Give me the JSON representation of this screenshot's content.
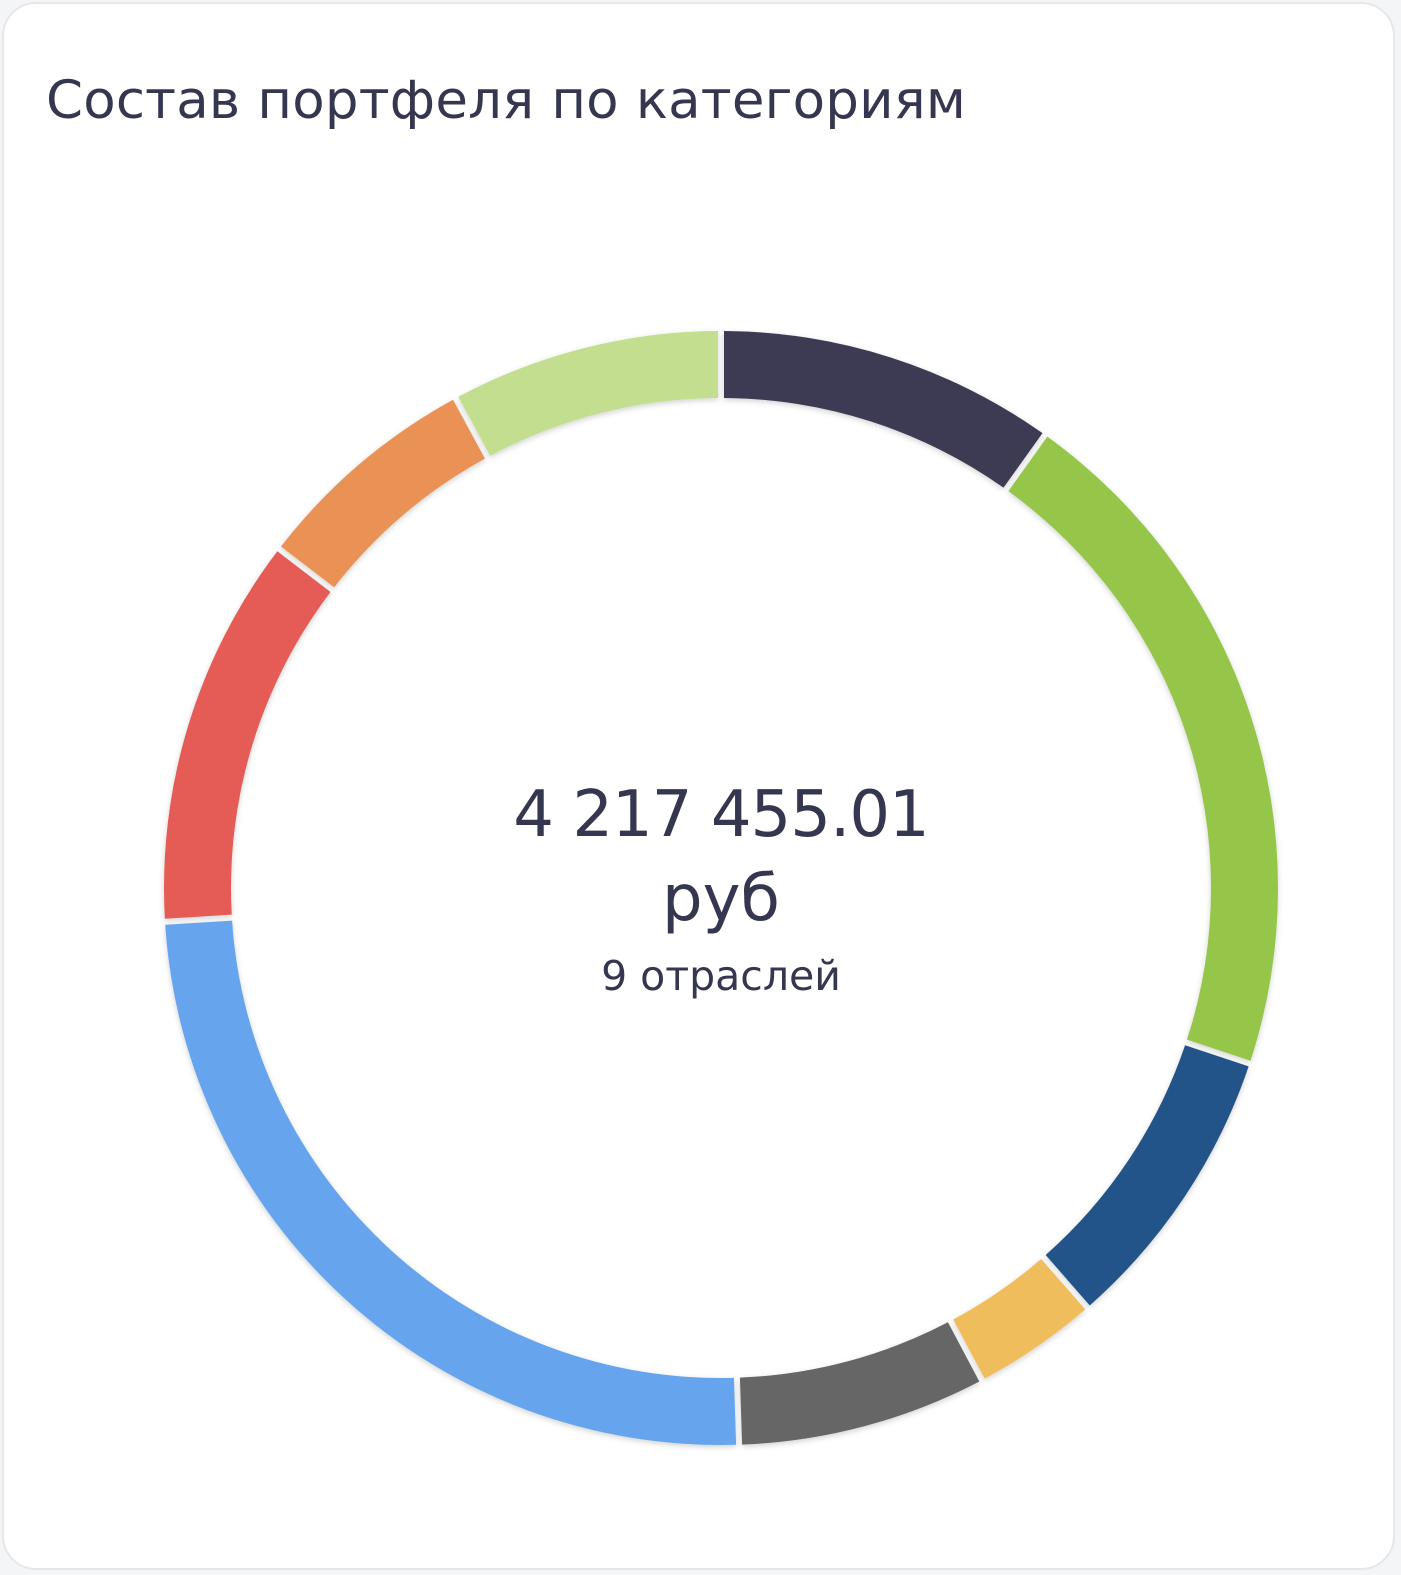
{
  "card": {
    "title": "Состав портфеля по категориям"
  },
  "center": {
    "amount": "4 217 455.01",
    "currency": "руб",
    "count": "9 отраслей"
  },
  "chart_data": {
    "type": "pie",
    "style": "donut",
    "start": "top",
    "direction": "clockwise",
    "slices": [
      {
        "value": 10.5,
        "color": "#3c3a52"
      },
      {
        "value": 21.5,
        "color": "#95c548"
      },
      {
        "value": 9.0,
        "color": "#245389"
      },
      {
        "value": 3.9,
        "color": "#f0bd5d"
      },
      {
        "value": 7.7,
        "color": "#666666"
      },
      {
        "value": 26.1,
        "color": "#66a5ee"
      },
      {
        "value": 12.1,
        "color": "#e45b55"
      },
      {
        "value": 7.1,
        "color": "#ea9154"
      },
      {
        "value": 8.4,
        "color": "#c2de8e"
      }
    ]
  }
}
